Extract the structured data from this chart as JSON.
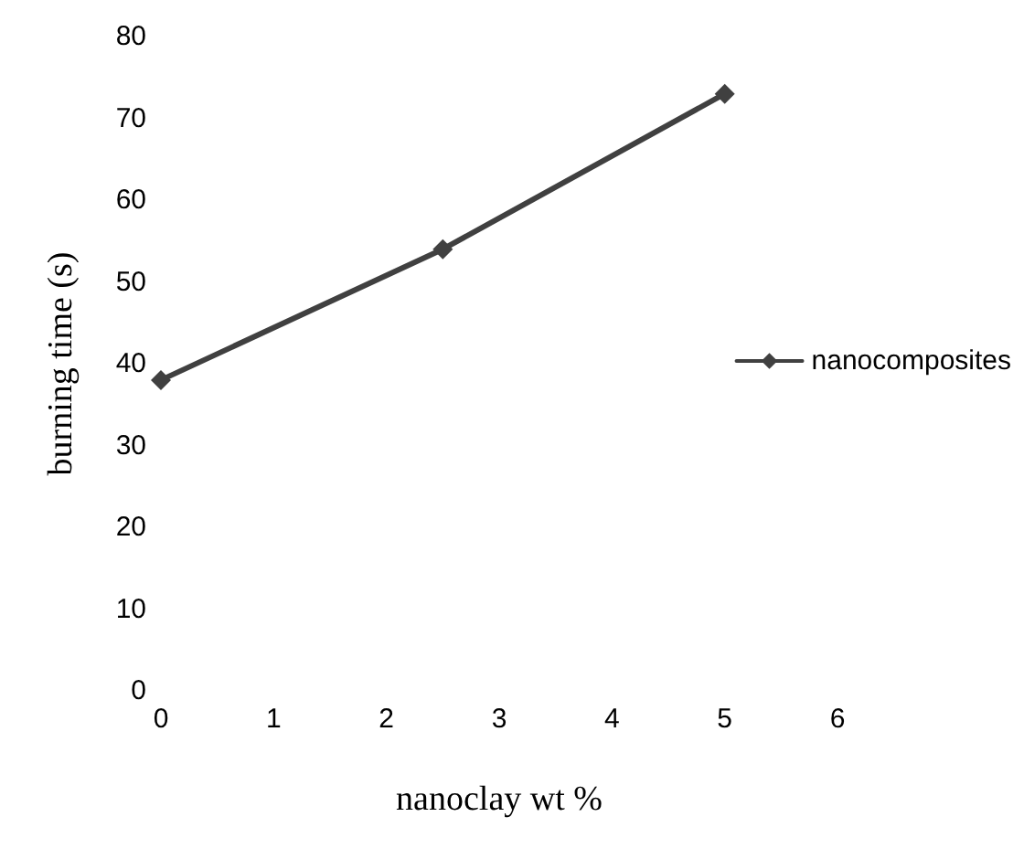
{
  "chart_data": {
    "type": "line",
    "xlabel": "nanoclay wt %",
    "ylabel": "burning time (s)",
    "x": [
      0,
      2.5,
      5
    ],
    "series": [
      {
        "name": "nanocomposites",
        "color": "#404040",
        "values": [
          38,
          54,
          73
        ]
      }
    ],
    "xlim": [
      0,
      6
    ],
    "xticks": [
      0,
      1,
      2,
      3,
      4,
      5,
      6
    ],
    "ylim": [
      0,
      80
    ],
    "yticks": [
      0,
      10,
      20,
      30,
      40,
      50,
      60,
      70,
      80
    ],
    "marker": "diamond",
    "line_style": "solid",
    "legend": "right",
    "grid": false
  }
}
